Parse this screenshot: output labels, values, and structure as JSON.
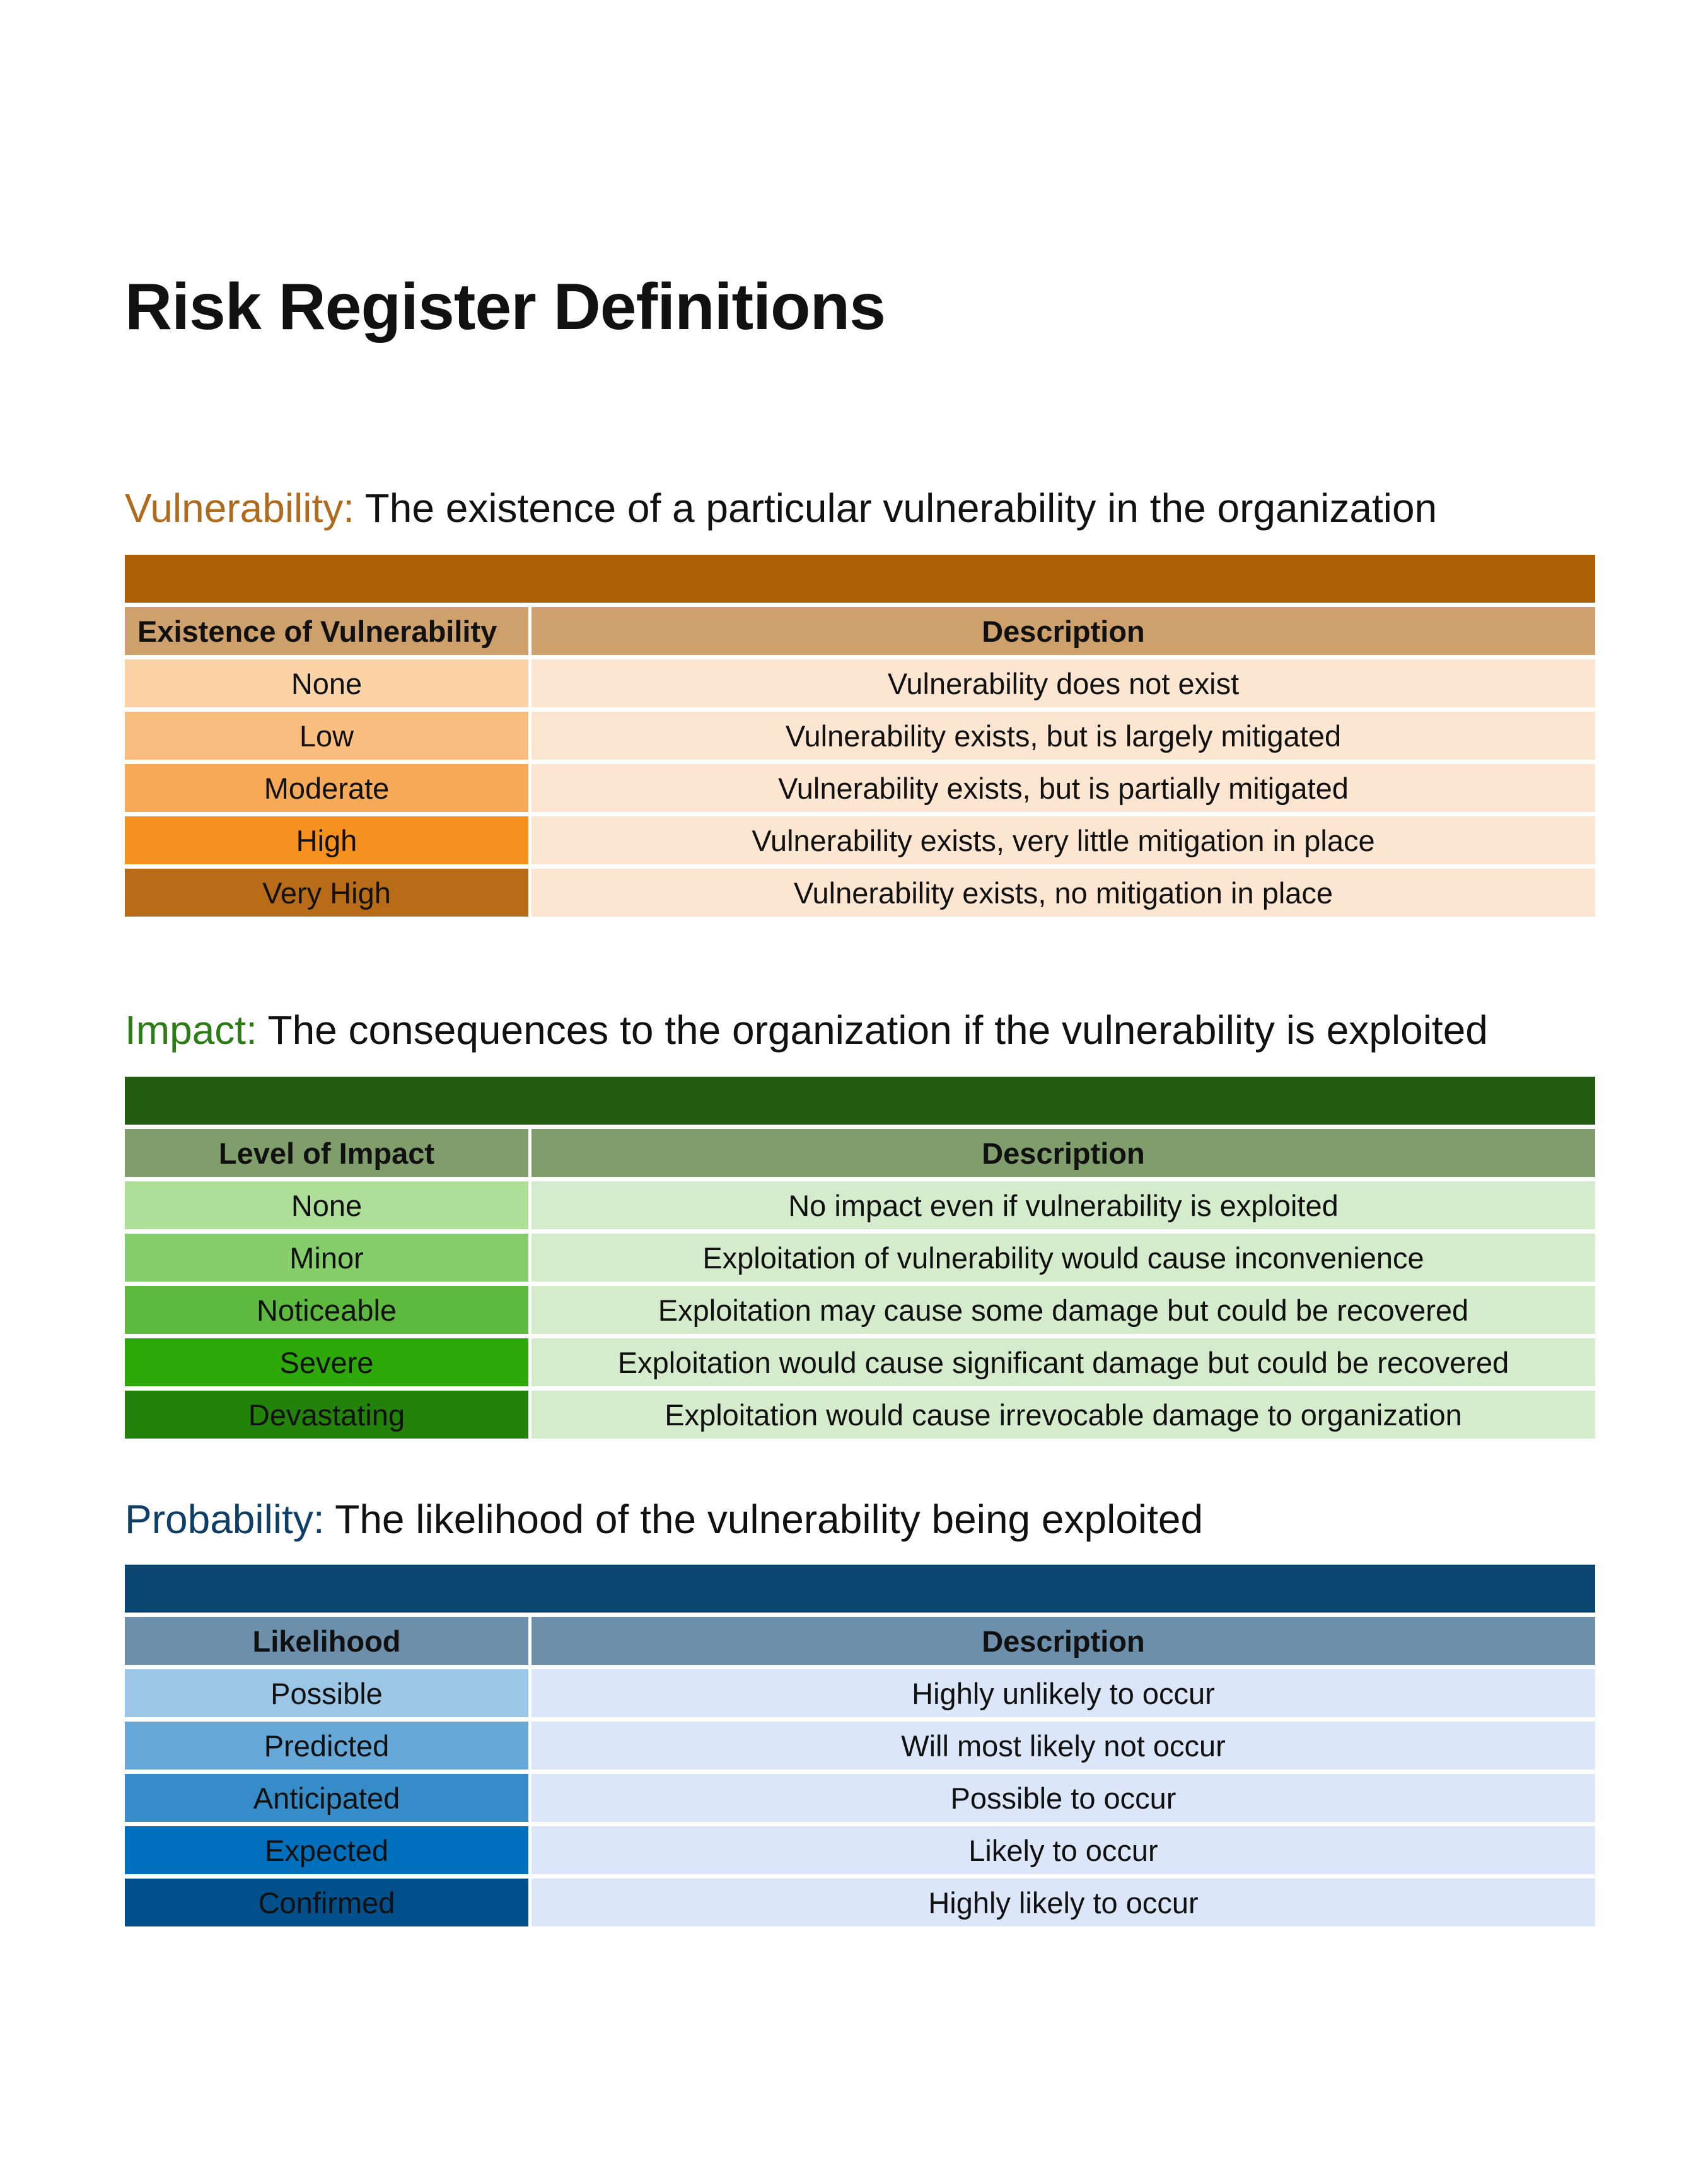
{
  "title": "Risk Register Definitions",
  "sections": [
    {
      "keyword": "Vulnerability:",
      "definition": "The existence of a particular vulnerability in the organization",
      "keyword_color": "#b06a1c",
      "banner_color": "#ad5f07",
      "header_color": "#cda06c",
      "desc_bg": "#fce6d2",
      "columns": [
        "Existence of Vulnerability",
        "Description"
      ],
      "rows": [
        {
          "level": "None",
          "description": "Vulnerability does not exist",
          "color": "#fbd3a6"
        },
        {
          "level": "Low",
          "description": "Vulnerability exists, but is largely mitigated",
          "color": "#f9be7f"
        },
        {
          "level": "Moderate",
          "description": "Vulnerability exists, but is partially mitigated",
          "color": "#f6aa57"
        },
        {
          "level": "High",
          "description": "Vulnerability exists, very little mitigation in place",
          "color": "#f5921f"
        },
        {
          "level": "Very High",
          "description": "Vulnerability exists, no mitigation in place",
          "color": "#b86c17"
        }
      ]
    },
    {
      "keyword": "Impact:",
      "definition": "The consequences to the organization if the vulnerability is exploited",
      "keyword_color": "#2a7d12",
      "banner_color": "#245c11",
      "header_color": "#7f9e6b",
      "desc_bg": "#d5eccc",
      "columns": [
        "Level of Impact",
        "Description"
      ],
      "rows": [
        {
          "level": "None",
          "description": "No impact even if vulnerability is exploited",
          "color": "#addf98"
        },
        {
          "level": "Minor",
          "description": "Exploitation of vulnerability would cause inconvenience",
          "color": "#85cd6a"
        },
        {
          "level": "Noticeable",
          "description": "Exploitation may cause some damage but could be recovered",
          "color": "#5eba3e"
        },
        {
          "level": "Severe",
          "description": "Exploitation would cause significant damage but could be recovered",
          "color": "#2ea90a"
        },
        {
          "level": "Devastating",
          "description": "Exploitation would cause irrevocable damage to organization",
          "color": "#23820a"
        }
      ]
    },
    {
      "keyword": "Probability:",
      "definition": "The likelihood of the vulnerability being exploited",
      "keyword_color": "#0e3f68",
      "banner_color": "#0b4670",
      "header_color": "#6c90ab",
      "desc_bg": "#dbe7f9",
      "columns": [
        "Likelihood",
        "Description"
      ],
      "rows": [
        {
          "level": "Possible",
          "description": "Highly unlikely to occur",
          "color": "#9cc6e6"
        },
        {
          "level": "Predicted",
          "description": "Will most likely not occur",
          "color": "#66a8d8"
        },
        {
          "level": "Anticipated",
          "description": "Possible to occur",
          "color": "#368cc9"
        },
        {
          "level": "Expected",
          "description": "Likely to occur",
          "color": "#0070bd"
        },
        {
          "level": "Confirmed",
          "description": "Highly likely to occur",
          "color": "#01508c"
        }
      ]
    }
  ]
}
